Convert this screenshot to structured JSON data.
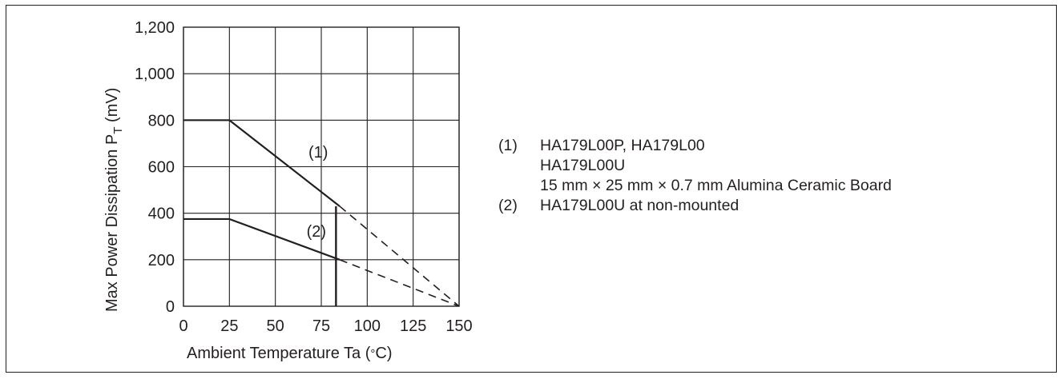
{
  "chart_data": {
    "type": "line",
    "xlabel": "Ambient Temperature Ta (°C)",
    "xlabel_parts": {
      "main": "Ambient Temperature Ta (",
      "unit_symbol": "°",
      "unit_rest": "C)"
    },
    "ylabel_parts": {
      "main": "Max Power Dissipation P",
      "subscript": "T",
      "unit": " (mV)"
    },
    "xlim": [
      0,
      150
    ],
    "ylim": [
      0,
      1200
    ],
    "x_ticks": [
      0,
      25,
      50,
      75,
      100,
      125,
      150
    ],
    "y_ticks": [
      0,
      200,
      400,
      600,
      800,
      1000,
      1200
    ],
    "x_tick_labels": [
      "0",
      "25",
      "50",
      "75",
      "100",
      "125",
      "150"
    ],
    "y_tick_labels": [
      "0",
      "200",
      "400",
      "600",
      "800",
      "1,000",
      "1,200"
    ],
    "grid": true,
    "series": [
      {
        "name": "(1)",
        "solid": {
          "x": [
            0,
            25,
            85
          ],
          "y": [
            800,
            800,
            430
          ]
        },
        "dashed": {
          "x": [
            85,
            150
          ],
          "y": [
            430,
            0
          ]
        }
      },
      {
        "name": "(2)",
        "solid": {
          "x": [
            0,
            25,
            85
          ],
          "y": [
            375,
            375,
            200
          ]
        },
        "dashed": {
          "x": [
            85,
            150
          ],
          "y": [
            200,
            0
          ]
        }
      }
    ],
    "limit_line": {
      "x": 83,
      "y": [
        0,
        430
      ]
    },
    "annotations": [
      {
        "text": "(1)",
        "x": 68,
        "y": 640
      },
      {
        "text": "(2)",
        "x": 67,
        "y": 300
      }
    ]
  },
  "legend": {
    "entries": [
      {
        "marker": "(1)",
        "lines": [
          "HA179L00P, HA179L00",
          "HA179L00U",
          "15 mm × 25 mm × 0.7 mm Alumina Ceramic Board"
        ]
      },
      {
        "marker": "(2)",
        "lines": [
          "HA179L00U at non-mounted"
        ]
      }
    ]
  }
}
